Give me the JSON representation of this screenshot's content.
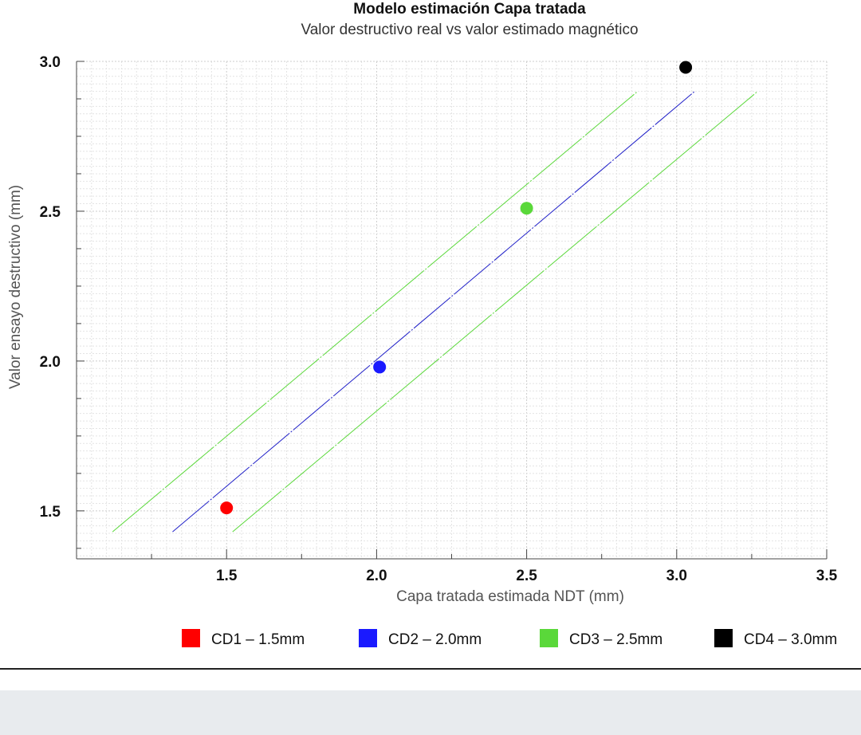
{
  "chart_data": {
    "type": "scatter",
    "title": "Modelo estimación Capa tratada",
    "subtitle": "Valor destructivo real vs valor estimado magnético",
    "xlabel": "Capa tratada estimada NDT (mm)",
    "ylabel": "Valor ensayo destructivo (mm)",
    "xlim": [
      1.0,
      3.5
    ],
    "ylim": [
      1.34,
      3.0
    ],
    "x_ticks": [
      "1.5",
      "2.0",
      "2.5",
      "3.0",
      "3.5"
    ],
    "y_ticks": [
      "1.5",
      "2.0",
      "2.5",
      "3.0"
    ],
    "grid": true,
    "legend_position": "bottom",
    "series": [
      {
        "name": "CD1 – 1.5mm",
        "color": "#ff0000",
        "points": [
          {
            "x": 1.5,
            "y": 1.51
          }
        ]
      },
      {
        "name": "CD2 – 2.0mm",
        "color": "#1a1aff",
        "points": [
          {
            "x": 2.01,
            "y": 1.98
          }
        ]
      },
      {
        "name": "CD3 – 2.5mm",
        "color": "#5ad83a",
        "points": [
          {
            "x": 2.5,
            "y": 2.51
          }
        ]
      },
      {
        "name": "CD4 – 3.0mm",
        "color": "#000000",
        "points": [
          {
            "x": 3.03,
            "y": 2.98
          }
        ]
      }
    ],
    "lines": [
      {
        "role": "fit",
        "color": "#2020c8",
        "from": {
          "x": 1.32,
          "y": 1.43
        },
        "to": {
          "x": 3.06,
          "y": 2.9
        }
      },
      {
        "role": "upper-band",
        "color": "#5ad83a",
        "from": {
          "x": 1.12,
          "y": 1.43
        },
        "to": {
          "x": 2.87,
          "y": 2.9
        }
      },
      {
        "role": "lower-band",
        "color": "#5ad83a",
        "from": {
          "x": 1.52,
          "y": 1.43
        },
        "to": {
          "x": 3.27,
          "y": 2.9
        }
      }
    ]
  }
}
